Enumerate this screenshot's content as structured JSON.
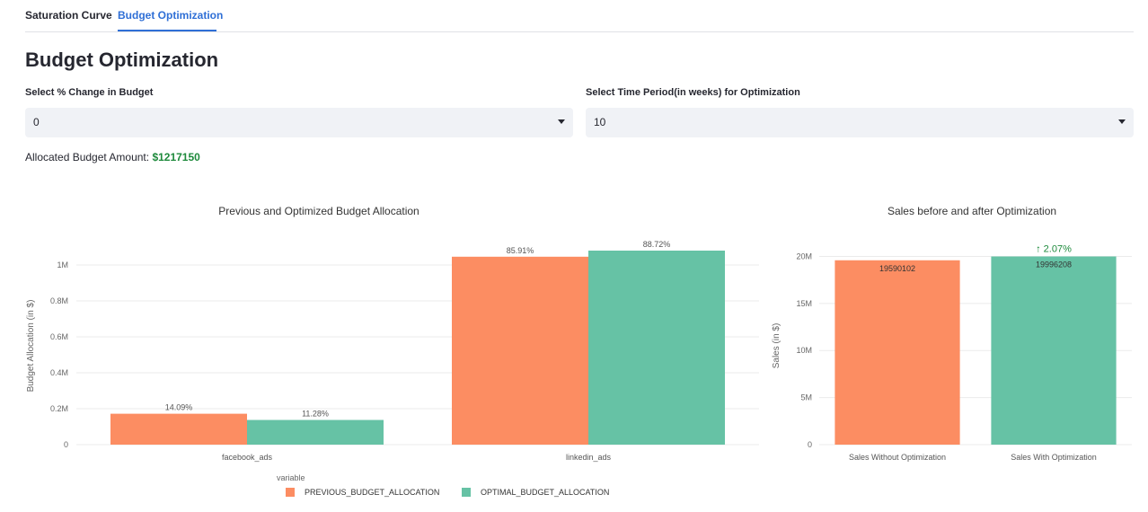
{
  "tabs": [
    {
      "label": "Saturation Curve",
      "active": false
    },
    {
      "label": "Budget Optimization",
      "active": true
    }
  ],
  "page_title": "Budget Optimization",
  "controls": {
    "budget_change": {
      "label": "Select % Change in Budget",
      "value": "0"
    },
    "time_period": {
      "label": "Select Time Period(in weeks) for Optimization",
      "value": "10"
    }
  },
  "allocated": {
    "label": "Allocated Budget Amount:",
    "amount": "$1217150"
  },
  "colors": {
    "previous": "#fc8d62",
    "optimal": "#66c2a5",
    "accent": "#2f6fd6",
    "positive": "#1e8a3c"
  },
  "chart_data": [
    {
      "type": "bar",
      "title": "Previous and Optimized Budget Allocation",
      "xlabel": "",
      "ylabel": "Budget Allocation (in $)",
      "ylim": [
        0,
        1100000
      ],
      "yticks": [
        {
          "value": 0,
          "label": "0"
        },
        {
          "value": 200000,
          "label": "0.2M"
        },
        {
          "value": 400000,
          "label": "0.4M"
        },
        {
          "value": 600000,
          "label": "0.6M"
        },
        {
          "value": 800000,
          "label": "0.8M"
        },
        {
          "value": 1000000,
          "label": "1M"
        }
      ],
      "categories": [
        "facebook_ads",
        "linkedin_ads"
      ],
      "series": [
        {
          "name": "PREVIOUS_BUDGET_ALLOCATION",
          "values": [
            172000,
            1046000
          ],
          "labels": [
            "14.09%",
            "85.91%"
          ]
        },
        {
          "name": "OPTIMAL_BUDGET_ALLOCATION",
          "values": [
            137300,
            1080000
          ],
          "labels": [
            "11.28%",
            "88.72%"
          ]
        }
      ],
      "legend_title": "variable",
      "legend_position": "bottom",
      "grid": true
    },
    {
      "type": "bar",
      "title": "Sales before and after Optimization",
      "xlabel": "",
      "ylabel": "Sales (in $)",
      "ylim": [
        0,
        21000000
      ],
      "yticks": [
        {
          "value": 0,
          "label": "0"
        },
        {
          "value": 5000000,
          "label": "5M"
        },
        {
          "value": 10000000,
          "label": "10M"
        },
        {
          "value": 15000000,
          "label": "15M"
        },
        {
          "value": 20000000,
          "label": "20M"
        }
      ],
      "categories": [
        "Sales Without Optimization",
        "Sales With Optimization"
      ],
      "values": [
        19590102,
        19996208
      ],
      "labels": [
        "19590102",
        "19996208"
      ],
      "annotation": "↑ 2.07%",
      "grid": true
    }
  ]
}
